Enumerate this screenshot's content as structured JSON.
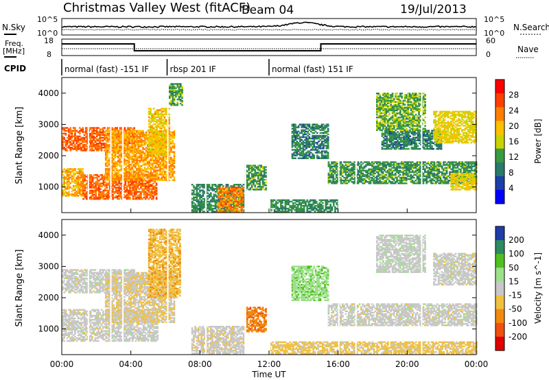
{
  "header": {
    "station": "Christmas Valley West (fitACF)",
    "beam": "Beam 04",
    "date": "19/Jul/2013"
  },
  "panels": {
    "nsky_label": "N.Sky",
    "nsky_ticks": [
      "10^5",
      "10^0"
    ],
    "nsky_right_ticks": [
      "10^5",
      "10^0"
    ],
    "nsearch_label": "N.Search",
    "freq_label_1": "Freq.",
    "freq_label_2": "[MHz]",
    "freq_ticks": [
      "18",
      "8"
    ],
    "nave_ticks": [
      "60",
      "0"
    ],
    "nave_label": "Nave",
    "cpid_label": "CPID",
    "cpid_segments": [
      {
        "label": "normal (fast) -151 IF",
        "start_h": 0.0,
        "end_h": 6.1
      },
      {
        "label": "rbsp 201 IF",
        "start_h": 6.1,
        "end_h": 12.0
      },
      {
        "label": "normal (fast) 151 IF",
        "start_h": 12.0,
        "end_h": 24.0
      }
    ]
  },
  "axes": {
    "ylabel": "Slant Range [km]",
    "xlabel": "Time UT",
    "xticks": [
      "00:00",
      "04:00",
      "08:00",
      "12:00",
      "16:00",
      "20:00",
      "00:00"
    ],
    "xtick_hours": [
      0,
      4,
      8,
      12,
      16,
      20,
      24
    ],
    "yticks": [
      "4000",
      "3000",
      "2000",
      "1000"
    ],
    "ytick_values": [
      4000,
      3000,
      2000,
      1000
    ]
  },
  "power_scale": {
    "label": "Power [dB]",
    "ticks": [
      "28",
      "24",
      "20",
      "16",
      "12",
      "8",
      "4"
    ],
    "tick_values": [
      28,
      24,
      20,
      16,
      12,
      8,
      4
    ],
    "colors": [
      "#ff0000",
      "#ff4000",
      "#ff8000",
      "#ffc000",
      "#c8d400",
      "#3a9a40",
      "#2a7a6a",
      "#1c3fa8",
      "#0000ff"
    ]
  },
  "velocity_scale": {
    "label": "Velocity [m s^-1]",
    "ticks": [
      "200",
      "100",
      "50",
      "15",
      "-15",
      "-50",
      "-100",
      "-200"
    ],
    "colors": [
      "#1f3ca8",
      "#2e8a60",
      "#50c020",
      "#9ee08c",
      "#c8c8c8",
      "#f0c040",
      "#f08a10",
      "#f05010",
      "#e00000"
    ]
  },
  "chart_data": {
    "type": "heatmap",
    "xlim_hours": [
      0,
      24
    ],
    "ylim_km": [
      180,
      4500
    ],
    "series": [
      {
        "name": "Power [dB]",
        "clim": [
          0,
          32
        ],
        "bands": [
          {
            "t0": 0.0,
            "t1": 4.2,
            "r0": 2150,
            "r1": 2900,
            "v": 26
          },
          {
            "t0": 0.0,
            "t1": 1.2,
            "r0": 700,
            "r1": 1600,
            "v": 21
          },
          {
            "t0": 1.2,
            "t1": 5.5,
            "r0": 600,
            "r1": 1400,
            "v": 26
          },
          {
            "t0": 2.5,
            "t1": 6.5,
            "r0": 1200,
            "r1": 2800,
            "v": 22
          },
          {
            "t0": 5.0,
            "t1": 6.2,
            "r0": 2000,
            "r1": 3500,
            "v": 19
          },
          {
            "t0": 6.2,
            "t1": 7.0,
            "r0": 3600,
            "r1": 4300,
            "v": 12
          },
          {
            "t0": 7.5,
            "t1": 10.5,
            "r0": 200,
            "r1": 1100,
            "v": 10
          },
          {
            "t0": 9.0,
            "t1": 10.5,
            "r0": 200,
            "r1": 1000,
            "v": 24
          },
          {
            "t0": 10.6,
            "t1": 11.8,
            "r0": 900,
            "r1": 1700,
            "v": 11
          },
          {
            "t0": 12.0,
            "t1": 16.0,
            "r0": 200,
            "r1": 600,
            "v": 10
          },
          {
            "t0": 13.3,
            "t1": 15.4,
            "r0": 1900,
            "r1": 3000,
            "v": 9
          },
          {
            "t0": 15.4,
            "t1": 24.0,
            "r0": 1100,
            "r1": 1800,
            "v": 11
          },
          {
            "t0": 18.5,
            "t1": 22.0,
            "r0": 2200,
            "r1": 2800,
            "v": 9
          },
          {
            "t0": 18.2,
            "t1": 21.0,
            "r0": 2800,
            "r1": 4000,
            "v": 13
          },
          {
            "t0": 21.5,
            "t1": 24.0,
            "r0": 2400,
            "r1": 3400,
            "v": 18
          },
          {
            "t0": 22.5,
            "t1": 24.0,
            "r0": 900,
            "r1": 1400,
            "v": 18
          }
        ]
      },
      {
        "name": "Velocity [m s^-1]",
        "clim": [
          -200,
          200
        ],
        "bands": [
          {
            "t0": 0.0,
            "t1": 4.2,
            "r0": 2150,
            "r1": 2900,
            "v": 0
          },
          {
            "t0": 0.0,
            "t1": 5.5,
            "r0": 600,
            "r1": 1600,
            "v": 0
          },
          {
            "t0": 2.5,
            "t1": 6.5,
            "r0": 1200,
            "r1": 2800,
            "v": -20
          },
          {
            "t0": 5.0,
            "t1": 6.8,
            "r0": 2000,
            "r1": 4200,
            "v": -60
          },
          {
            "t0": 7.5,
            "t1": 10.5,
            "r0": 200,
            "r1": 1100,
            "v": -5
          },
          {
            "t0": 10.6,
            "t1": 11.8,
            "r0": 900,
            "r1": 1700,
            "v": -110
          },
          {
            "t0": 12.0,
            "t1": 24.0,
            "r0": 200,
            "r1": 600,
            "v": -40
          },
          {
            "t0": 13.3,
            "t1": 15.4,
            "r0": 1900,
            "r1": 3000,
            "v": 60
          },
          {
            "t0": 15.4,
            "t1": 24.0,
            "r0": 1100,
            "r1": 1800,
            "v": 0
          },
          {
            "t0": 18.2,
            "t1": 21.0,
            "r0": 2800,
            "r1": 4000,
            "v": 5
          },
          {
            "t0": 21.5,
            "t1": 24.0,
            "r0": 2400,
            "r1": 3400,
            "v": 0
          }
        ]
      }
    ]
  }
}
